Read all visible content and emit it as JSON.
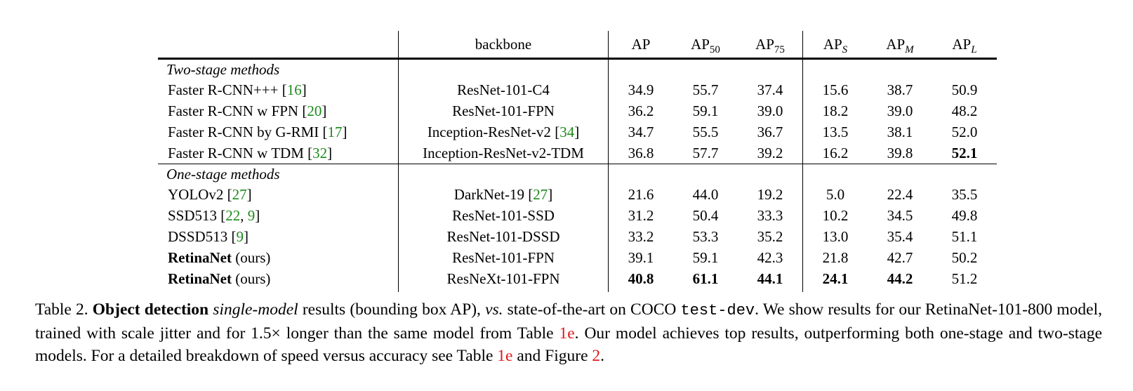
{
  "header": {
    "backbone": "backbone",
    "ap": "AP",
    "ap50_base": "AP",
    "ap50_sub": "50",
    "ap75_base": "AP",
    "ap75_sub": "75",
    "aps_base": "AP",
    "aps_sub": "S",
    "apm_base": "AP",
    "apm_sub": "M",
    "apl_base": "AP",
    "apl_sub": "L"
  },
  "groups": [
    {
      "title": "Two-stage methods",
      "rows": [
        {
          "name": "Faster R-CNN+++ ",
          "ref1": "16",
          "ref_sep": "",
          "ref2": "",
          "suffix": "",
          "backbone": "ResNet-101-C4",
          "bb_ref": "",
          "vals": [
            "34.9",
            "55.7",
            "37.4",
            "15.6",
            "38.7",
            "50.9"
          ]
        },
        {
          "name": "Faster R-CNN w FPN ",
          "ref1": "20",
          "ref_sep": "",
          "ref2": "",
          "suffix": "",
          "backbone": "ResNet-101-FPN",
          "bb_ref": "",
          "vals": [
            "36.2",
            "59.1",
            "39.0",
            "18.2",
            "39.0",
            "48.2"
          ]
        },
        {
          "name": "Faster R-CNN by G-RMI ",
          "ref1": "17",
          "ref_sep": "",
          "ref2": "",
          "suffix": "",
          "backbone": "Inception-ResNet-v2 ",
          "bb_ref": "34",
          "vals": [
            "34.7",
            "55.5",
            "36.7",
            "13.5",
            "38.1",
            "52.0"
          ]
        },
        {
          "name": "Faster R-CNN w TDM ",
          "ref1": "32",
          "ref_sep": "",
          "ref2": "",
          "suffix": "",
          "backbone": "Inception-ResNet-v2-TDM",
          "bb_ref": "",
          "vals": [
            "36.8",
            "57.7",
            "39.2",
            "16.2",
            "39.8",
            "52.1"
          ]
        }
      ]
    },
    {
      "title": "One-stage methods",
      "rows": [
        {
          "name": "YOLOv2 ",
          "ref1": "27",
          "ref_sep": "",
          "ref2": "",
          "suffix": "",
          "backbone": "DarkNet-19 ",
          "bb_ref": "27",
          "vals": [
            "21.6",
            "44.0",
            "19.2",
            "5.0",
            "22.4",
            "35.5"
          ]
        },
        {
          "name": "SSD513 ",
          "ref1": "22",
          "ref_sep": ", ",
          "ref2": "9",
          "suffix": "",
          "backbone": "ResNet-101-SSD",
          "bb_ref": "",
          "vals": [
            "31.2",
            "50.4",
            "33.3",
            "10.2",
            "34.5",
            "49.8"
          ]
        },
        {
          "name": "DSSD513 ",
          "ref1": "9",
          "ref_sep": "",
          "ref2": "",
          "suffix": "",
          "backbone": "ResNet-101-DSSD",
          "bb_ref": "",
          "vals": [
            "33.2",
            "53.3",
            "35.2",
            "13.0",
            "35.4",
            "51.1"
          ]
        },
        {
          "name": "RetinaNet",
          "ref1": "",
          "ref_sep": "",
          "ref2": "",
          "suffix": " (ours)",
          "backbone": "ResNet-101-FPN",
          "bb_ref": "",
          "vals": [
            "39.1",
            "59.1",
            "42.3",
            "21.8",
            "42.7",
            "50.2"
          ]
        },
        {
          "name": "RetinaNet",
          "ref1": "",
          "ref_sep": "",
          "ref2": "",
          "suffix": " (ours)",
          "backbone": "ResNeXt-101-FPN",
          "bb_ref": "",
          "vals": [
            "40.8",
            "61.1",
            "44.1",
            "24.1",
            "44.2",
            "51.2"
          ]
        }
      ]
    }
  ],
  "caption": {
    "label": "Table 2. ",
    "bold": "Object detection",
    "t1": " ",
    "ital": "single-model",
    "t2": " results (bounding box AP), ",
    "vs": "vs.",
    "t3": " state-of-the-art on COCO ",
    "mono": "test-dev",
    "t4": ". We show results for our RetinaNet-101-800 model, trained with scale jitter and for 1.5× longer than the same model from Table ",
    "ref1": "1e",
    "t5": ". Our model achieves top results, outperforming both one-stage and two-stage models. For a detailed breakdown of speed versus accuracy see Table ",
    "ref2": "1e",
    "t6": " and Figure ",
    "ref3": "2",
    "t7": "."
  }
}
